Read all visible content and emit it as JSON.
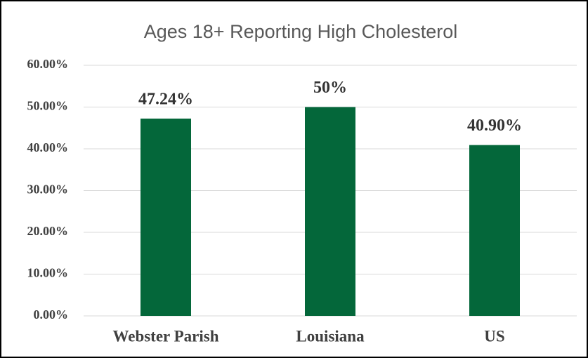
{
  "chart_data": {
    "type": "bar",
    "title": "Ages 18+ Reporting High Cholesterol",
    "categories": [
      "Webster Parish",
      "Louisiana",
      "US"
    ],
    "values": [
      47.24,
      50,
      40.9
    ],
    "value_labels": [
      "47.24%",
      "50%",
      "40.90%"
    ],
    "color": "#04673a",
    "ylim": [
      0,
      60
    ],
    "yticks": [
      {
        "value": 0,
        "label": "0.00%"
      },
      {
        "value": 10,
        "label": "10.00%"
      },
      {
        "value": 20,
        "label": "20.00%"
      },
      {
        "value": 30,
        "label": "30.00%"
      },
      {
        "value": 40,
        "label": "40.00%"
      },
      {
        "value": 50,
        "label": "50.00%"
      },
      {
        "value": 60,
        "label": "60.00%"
      }
    ],
    "grid": true
  }
}
